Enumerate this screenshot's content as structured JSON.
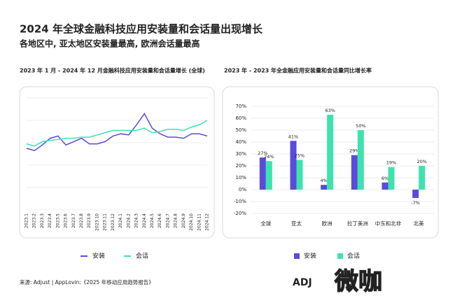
{
  "header": {
    "title": "2024 年全球金融科技应用安装量和会话量出现增长",
    "subtitle": "各地区中, 亚太地区安装量最高, 欧洲会话量最高"
  },
  "chart_data": [
    {
      "type": "line",
      "title": "2023 年 1 月 - 2024 年 12 月金融科技应用安装量和会话量增长 (全球)",
      "categories": [
        "2023.1",
        "2023.2",
        "2023.3",
        "2023.4",
        "2023.5",
        "2023.6",
        "2023.7",
        "2023.8",
        "2023.9",
        "2023.10",
        "2023.11",
        "2023.12",
        "2024.1",
        "2024.2",
        "2024.3",
        "2024.4",
        "2024.5",
        "2024.6",
        "2024.7",
        "2024.8",
        "2024.9",
        "2024.10",
        "2024.11",
        "2024.12"
      ],
      "series": [
        {
          "name": "安装",
          "color": "#5a4bdc",
          "values": [
            55,
            53,
            58,
            64,
            66,
            58,
            61,
            64,
            59,
            59,
            61,
            66,
            68,
            67,
            76,
            86,
            73,
            68,
            65,
            65,
            64,
            68,
            68,
            66
          ]
        },
        {
          "name": "会话",
          "color": "#3de3ad",
          "values": [
            59,
            57,
            61,
            62,
            63,
            64,
            64,
            65,
            65,
            67,
            69,
            71,
            71,
            71,
            71,
            73,
            69,
            70,
            72,
            72,
            71,
            74,
            76,
            80
          ]
        }
      ],
      "ylim": [
        0,
        100
      ],
      "grid": true
    },
    {
      "type": "bar",
      "title": "2023 年 - 2023 年全金融应用安装量和会话量同比增长率",
      "categories": [
        "全球",
        "亚太",
        "欧洲",
        "拉丁美洲",
        "中东和北非",
        "北美"
      ],
      "series": [
        {
          "name": "安装",
          "color": "#5a4bdc",
          "values": [
            27,
            41,
            4,
            29,
            6,
            -7
          ],
          "value_labels": [
            "27%",
            "41%",
            "4%",
            "29%",
            "6%",
            "-7%"
          ]
        },
        {
          "name": "会话",
          "color": "#3de3ad",
          "values": [
            24,
            25,
            63,
            50,
            19,
            20
          ],
          "value_labels": [
            "24%",
            "25%",
            "63%",
            "50%",
            "19%",
            "20%"
          ]
        }
      ],
      "ylim": [
        -20,
        70
      ],
      "yticks": [
        {
          "value": -20,
          "label": "-20%"
        },
        {
          "value": -10,
          "label": "-10%"
        },
        {
          "value": 0,
          "label": "0%"
        },
        {
          "value": 10,
          "label": "10%"
        },
        {
          "value": 20,
          "label": "20%"
        },
        {
          "value": 30,
          "label": "30%"
        },
        {
          "value": 40,
          "label": "40%"
        },
        {
          "value": 50,
          "label": "50%"
        },
        {
          "value": 60,
          "label": "60%"
        },
        {
          "value": 70,
          "label": "70%"
        }
      ],
      "grid": true
    }
  ],
  "footer": {
    "source": "来源: Adjust | AppLovin:《2025 年移动应用趋势报告》",
    "logo_adj": "ADJ",
    "logo_brand": "微咖"
  }
}
